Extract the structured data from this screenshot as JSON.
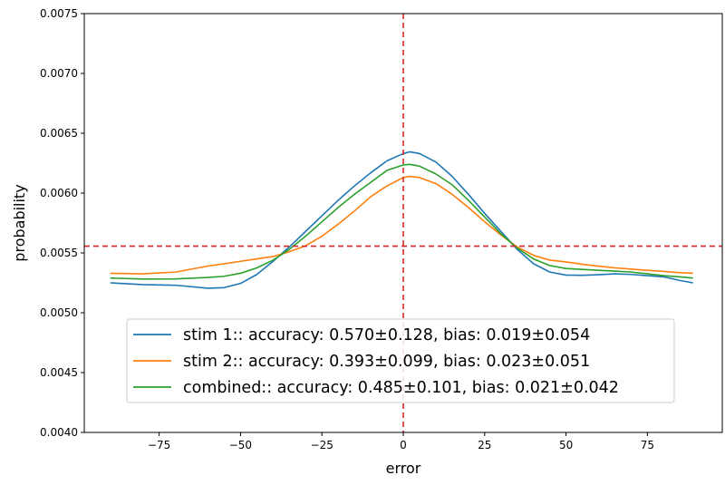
{
  "chart_data": {
    "type": "line",
    "title": "",
    "xlabel": "error",
    "ylabel": "probability",
    "xlim": [
      -98,
      98
    ],
    "ylim": [
      0.004,
      0.0075
    ],
    "x_ticks": [
      -75,
      -50,
      -25,
      0,
      25,
      50,
      75
    ],
    "x_tick_labels": [
      "−75",
      "−50",
      "−25",
      "0",
      "25",
      "50",
      "75"
    ],
    "y_ticks": [
      0.004,
      0.0045,
      0.005,
      0.0055,
      0.006,
      0.0065,
      0.007,
      0.0075
    ],
    "y_tick_labels": [
      "0.0040",
      "0.0045",
      "0.0050",
      "0.0055",
      "0.0060",
      "0.0065",
      "0.0070",
      "0.0075"
    ],
    "grid": false,
    "legend_position": "lower-center",
    "reference_lines": {
      "vertical_x": 0,
      "horizontal_y": 0.005556,
      "color": "#d62728",
      "style": "dashed"
    },
    "series": [
      {
        "name": "stim 1:: accuracy: 0.570±0.128, bias: 0.019±0.054",
        "color": "#1f77b4",
        "x": [
          -90,
          -80,
          -70,
          -60,
          -55,
          -50,
          -45,
          -40,
          -35,
          -30,
          -25,
          -20,
          -15,
          -10,
          -5,
          0,
          2,
          5,
          10,
          15,
          20,
          25,
          30,
          35,
          40,
          45,
          50,
          55,
          60,
          65,
          70,
          75,
          80,
          85,
          89
        ],
        "y": [
          0.00525,
          0.005235,
          0.00523,
          0.005205,
          0.00521,
          0.005245,
          0.00532,
          0.00543,
          0.00555,
          0.00568,
          0.00581,
          0.00594,
          0.00606,
          0.00617,
          0.00627,
          0.00633,
          0.006345,
          0.00633,
          0.00626,
          0.00614,
          0.00599,
          0.00583,
          0.00568,
          0.00553,
          0.00541,
          0.00534,
          0.005315,
          0.005313,
          0.005318,
          0.005325,
          0.00532,
          0.00531,
          0.0053,
          0.00527,
          0.00525
        ]
      },
      {
        "name": "stim 2:: accuracy: 0.393±0.099, bias: 0.023±0.051",
        "color": "#ff7f0e",
        "x": [
          -90,
          -80,
          -70,
          -60,
          -50,
          -45,
          -40,
          -35,
          -30,
          -25,
          -20,
          -15,
          -10,
          -5,
          0,
          2,
          5,
          10,
          15,
          20,
          25,
          30,
          35,
          40,
          45,
          50,
          55,
          60,
          65,
          70,
          75,
          80,
          85,
          89
        ],
        "y": [
          0.00533,
          0.005325,
          0.00534,
          0.00539,
          0.00543,
          0.00545,
          0.00547,
          0.00551,
          0.00556,
          0.00564,
          0.00574,
          0.00585,
          0.00597,
          0.00606,
          0.00613,
          0.00614,
          0.00613,
          0.00608,
          0.00599,
          0.00588,
          0.00576,
          0.00565,
          0.00555,
          0.00548,
          0.00544,
          0.005425,
          0.005405,
          0.00539,
          0.005375,
          0.005365,
          0.005355,
          0.005345,
          0.005335,
          0.00533
        ]
      },
      {
        "name": "combined:: accuracy: 0.485±0.101, bias: 0.021±0.042",
        "color": "#2ca02c",
        "x": [
          -90,
          -80,
          -70,
          -60,
          -55,
          -50,
          -45,
          -40,
          -35,
          -30,
          -25,
          -20,
          -15,
          -10,
          -5,
          0,
          2,
          5,
          10,
          15,
          20,
          25,
          30,
          35,
          40,
          45,
          50,
          55,
          60,
          65,
          70,
          75,
          80,
          85,
          89
        ],
        "y": [
          0.00529,
          0.005282,
          0.005283,
          0.005295,
          0.005305,
          0.00533,
          0.005375,
          0.00544,
          0.00553,
          0.00564,
          0.00576,
          0.00588,
          0.00599,
          0.00609,
          0.00619,
          0.006235,
          0.00624,
          0.006225,
          0.00616,
          0.00607,
          0.00594,
          0.0058,
          0.00566,
          0.00554,
          0.00545,
          0.005395,
          0.00537,
          0.005362,
          0.005355,
          0.005348,
          0.00534,
          0.005325,
          0.00531,
          0.0053,
          0.00529
        ]
      }
    ]
  }
}
